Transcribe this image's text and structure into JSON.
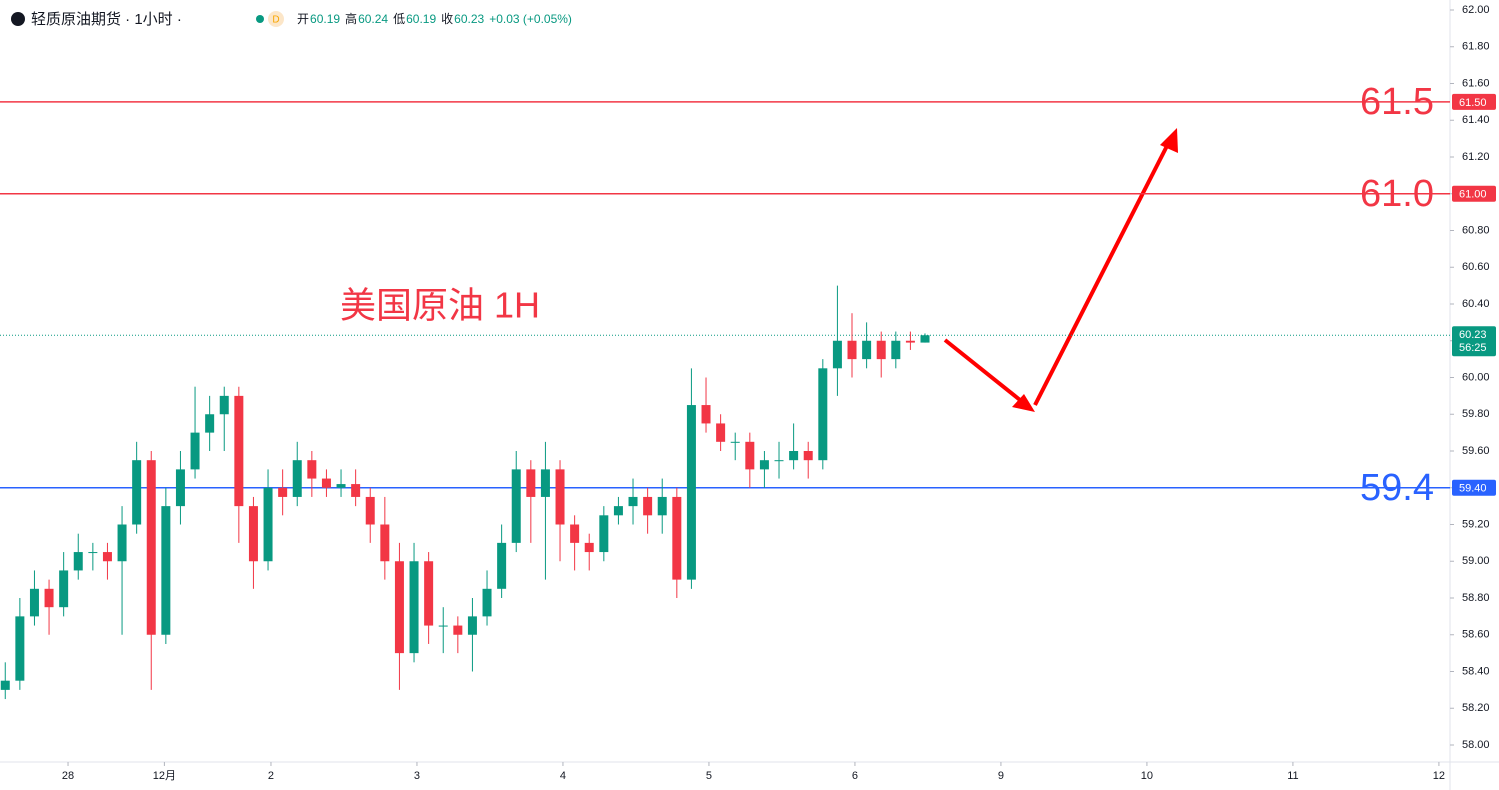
{
  "header": {
    "title": "轻质原油期货 · 1小时 ·",
    "badge": "D",
    "items": [
      {
        "label": "开",
        "value": "60.19"
      },
      {
        "label": "高",
        "value": "60.24"
      },
      {
        "label": "低",
        "value": "60.19"
      },
      {
        "label": "收",
        "value": "60.23"
      }
    ],
    "change": "+0.03 (+0.05%)"
  },
  "chart_data": {
    "type": "candlestick",
    "annotation": "美国原油 1H",
    "up_color": "#089981",
    "down_color": "#f23645",
    "x": [
      -0.43,
      -0.33,
      -0.23,
      -0.13,
      -0.03,
      0.07,
      0.17,
      0.27,
      0.37,
      0.47,
      0.57,
      0.67,
      0.77,
      0.87,
      0.97,
      1.07,
      1.17,
      1.27,
      1.37,
      1.47,
      1.57,
      1.67,
      1.77,
      1.87,
      1.97,
      2.07,
      2.17,
      2.27,
      2.37,
      2.47,
      2.57,
      2.67,
      2.77,
      2.87,
      2.97,
      3.07,
      3.17,
      3.27,
      3.37,
      3.47,
      3.57,
      3.67,
      3.77,
      3.87,
      3.97,
      4.07,
      4.17,
      4.27,
      4.37,
      4.47,
      4.57,
      4.67,
      4.77,
      4.87,
      4.97,
      5.07,
      5.17,
      5.27,
      5.37,
      5.47,
      5.57,
      5.67,
      5.77,
      5.87
    ],
    "open": [
      58.3,
      58.35,
      58.7,
      58.85,
      58.75,
      58.95,
      59.05,
      59.05,
      59.0,
      59.2,
      59.55,
      58.6,
      59.3,
      59.5,
      59.7,
      59.8,
      59.9,
      59.3,
      59.0,
      59.4,
      59.35,
      59.55,
      59.45,
      59.4,
      59.42,
      59.35,
      59.2,
      59.0,
      58.5,
      59.0,
      58.65,
      58.65,
      58.6,
      58.7,
      58.85,
      59.1,
      59.5,
      59.35,
      59.5,
      59.2,
      59.1,
      59.05,
      59.25,
      59.3,
      59.35,
      59.25,
      59.35,
      58.9,
      59.85,
      59.75,
      59.65,
      59.65,
      59.5,
      59.55,
      59.55,
      59.6,
      59.55,
      60.05,
      60.2,
      60.1,
      60.2,
      60.1,
      60.2,
      60.19
    ],
    "high": [
      58.45,
      58.8,
      58.95,
      58.9,
      59.05,
      59.15,
      59.1,
      59.1,
      59.3,
      59.65,
      59.6,
      59.4,
      59.6,
      59.95,
      59.9,
      59.95,
      59.95,
      59.35,
      59.5,
      59.5,
      59.65,
      59.6,
      59.5,
      59.5,
      59.5,
      59.4,
      59.35,
      59.1,
      59.1,
      59.05,
      58.75,
      58.7,
      58.8,
      58.95,
      59.2,
      59.6,
      59.55,
      59.65,
      59.55,
      59.25,
      59.15,
      59.3,
      59.35,
      59.45,
      59.4,
      59.45,
      59.4,
      60.05,
      60.0,
      59.8,
      59.7,
      59.7,
      59.6,
      59.65,
      59.75,
      59.65,
      60.1,
      60.5,
      60.35,
      60.3,
      60.25,
      60.25,
      60.25,
      60.24
    ],
    "low": [
      58.25,
      58.3,
      58.65,
      58.6,
      58.7,
      58.9,
      58.95,
      58.9,
      58.6,
      59.15,
      58.3,
      58.55,
      59.2,
      59.45,
      59.6,
      59.6,
      59.1,
      58.85,
      58.95,
      59.25,
      59.3,
      59.35,
      59.35,
      59.35,
      59.3,
      59.1,
      58.9,
      58.3,
      58.45,
      58.55,
      58.5,
      58.5,
      58.4,
      58.65,
      58.8,
      59.05,
      59.1,
      58.9,
      59.0,
      58.95,
      58.95,
      59.0,
      59.2,
      59.2,
      59.15,
      59.15,
      58.8,
      58.85,
      59.7,
      59.6,
      59.55,
      59.4,
      59.4,
      59.45,
      59.5,
      59.45,
      59.5,
      59.9,
      60.0,
      60.05,
      60.0,
      60.05,
      60.15,
      60.19
    ],
    "close": [
      58.35,
      58.7,
      58.85,
      58.75,
      58.95,
      59.05,
      59.05,
      59.0,
      59.2,
      59.55,
      58.6,
      59.3,
      59.5,
      59.7,
      59.8,
      59.9,
      59.3,
      59.0,
      59.4,
      59.35,
      59.55,
      59.45,
      59.4,
      59.42,
      59.35,
      59.2,
      59.0,
      58.5,
      59.0,
      58.65,
      58.65,
      58.6,
      58.7,
      58.85,
      59.1,
      59.5,
      59.35,
      59.5,
      59.2,
      59.1,
      59.05,
      59.25,
      59.3,
      59.35,
      59.25,
      59.35,
      58.9,
      59.85,
      59.75,
      59.65,
      59.65,
      59.5,
      59.55,
      59.55,
      59.6,
      59.55,
      60.05,
      60.2,
      60.1,
      60.2,
      60.1,
      60.2,
      60.19,
      60.23
    ],
    "xlim": [
      -0.466,
      9.466
    ],
    "xticks": [
      {
        "value": 0,
        "label": "28"
      },
      {
        "value": 0.66,
        "label": "12月"
      },
      {
        "value": 1.39,
        "label": "2"
      },
      {
        "value": 2.39,
        "label": "3"
      },
      {
        "value": 3.39,
        "label": "4"
      },
      {
        "value": 4.39,
        "label": "5"
      },
      {
        "value": 5.39,
        "label": "6"
      },
      {
        "value": 6.39,
        "label": "9"
      },
      {
        "value": 7.39,
        "label": "10"
      },
      {
        "value": 8.39,
        "label": "11"
      },
      {
        "value": 9.39,
        "label": "12"
      }
    ],
    "ylim": [
      58.0,
      62.0
    ],
    "yticks": [
      {
        "value": 58.0,
        "label": "58.00"
      },
      {
        "value": 58.2,
        "label": "58.20"
      },
      {
        "value": 58.4,
        "label": "58.40"
      },
      {
        "value": 58.6,
        "label": "58.60"
      },
      {
        "value": 58.8,
        "label": "58.80"
      },
      {
        "value": 59.0,
        "label": "59.00"
      },
      {
        "value": 59.2,
        "label": "59.20"
      },
      {
        "value": 59.4,
        "label": "59.40"
      },
      {
        "value": 59.6,
        "label": "59.60"
      },
      {
        "value": 59.8,
        "label": "59.80"
      },
      {
        "value": 60.0,
        "label": "60.00"
      },
      {
        "value": 60.2,
        "label": "60.20"
      },
      {
        "value": 60.4,
        "label": "60.40"
      },
      {
        "value": 60.6,
        "label": "60.60"
      },
      {
        "value": 60.8,
        "label": "60.80"
      },
      {
        "value": 61.0,
        "label": "61.00"
      },
      {
        "value": 61.2,
        "label": "61.20"
      },
      {
        "value": 61.4,
        "label": "61.40"
      },
      {
        "value": 61.6,
        "label": "61.60"
      },
      {
        "value": 61.8,
        "label": "61.80"
      },
      {
        "value": 62.0,
        "label": "62.00"
      }
    ],
    "levels": [
      {
        "value": 61.5,
        "label": "61.5",
        "tag": "61.50",
        "color": "#f23645"
      },
      {
        "value": 61.0,
        "label": "61.0",
        "tag": "61.00",
        "color": "#f23645"
      },
      {
        "value": 59.4,
        "label": "59.4",
        "tag": "59.40",
        "color": "#2962ff"
      }
    ],
    "current": {
      "value": 60.23,
      "tag": "60.23",
      "countdown": "56:25",
      "color": "#089981"
    }
  }
}
